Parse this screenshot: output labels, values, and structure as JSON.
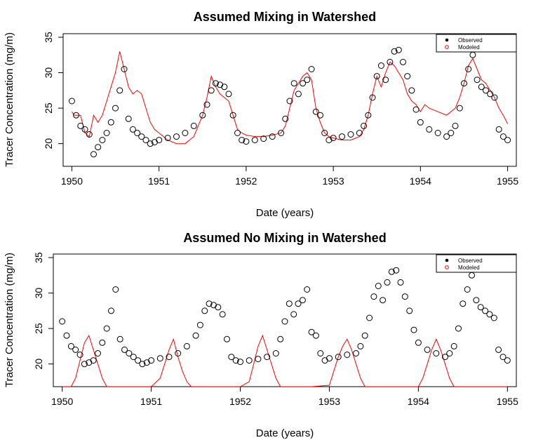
{
  "colors": {
    "observed": "#000000",
    "modeled": "#ff0000",
    "background": "#ffffff"
  },
  "chart_data": [
    {
      "type": "line",
      "title": "Assumed Mixing in Watershed",
      "xlabel": "Date (years)",
      "ylabel": "Tracer Concentration (mg/m)",
      "xlim": [
        1949.9,
        1955.1
      ],
      "ylim": [
        16.8,
        35.5
      ],
      "x_ticks": [
        1950,
        1951,
        1952,
        1953,
        1954,
        1955
      ],
      "x_tick_labels": [
        "1950",
        "1951",
        "1952",
        "1953",
        "1954",
        "1955"
      ],
      "y_ticks": [
        20,
        25,
        30,
        35
      ],
      "y_tick_labels": [
        "20",
        "25",
        "30",
        "35"
      ],
      "grid": false,
      "legend": {
        "position": "top-right",
        "entries": [
          "Observed",
          "Modeled"
        ]
      },
      "series": [
        {
          "name": "Observed",
          "style": "open-circles",
          "x": [
            1950.0,
            1950.05,
            1950.1,
            1950.15,
            1950.2,
            1950.25,
            1950.3,
            1950.35,
            1950.4,
            1950.45,
            1950.5,
            1950.55,
            1950.6,
            1950.65,
            1950.7,
            1950.75,
            1950.8,
            1950.85,
            1950.9,
            1950.95,
            1951.0,
            1951.1,
            1951.2,
            1951.3,
            1951.4,
            1951.5,
            1951.55,
            1951.6,
            1951.65,
            1951.7,
            1951.75,
            1951.8,
            1951.85,
            1951.9,
            1951.95,
            1952.0,
            1952.1,
            1952.2,
            1952.3,
            1952.4,
            1952.45,
            1952.5,
            1952.55,
            1952.6,
            1952.65,
            1952.7,
            1952.75,
            1952.8,
            1952.85,
            1952.9,
            1952.95,
            1953.0,
            1953.1,
            1953.2,
            1953.3,
            1953.35,
            1953.4,
            1953.45,
            1953.5,
            1953.55,
            1953.6,
            1953.65,
            1953.7,
            1953.75,
            1953.8,
            1953.85,
            1953.9,
            1953.95,
            1954.0,
            1954.1,
            1954.2,
            1954.3,
            1954.35,
            1954.4,
            1954.45,
            1954.5,
            1954.55,
            1954.6,
            1954.65,
            1954.7,
            1954.75,
            1954.8,
            1954.85,
            1954.9,
            1954.95,
            1955.0
          ],
          "y": [
            26.0,
            24.0,
            22.5,
            22.0,
            21.3,
            18.5,
            19.5,
            20.5,
            21.5,
            23.0,
            25.0,
            27.5,
            30.5,
            23.5,
            22.0,
            21.5,
            21.0,
            20.5,
            20.0,
            20.2,
            20.5,
            20.8,
            21.0,
            21.5,
            22.5,
            24.0,
            25.5,
            27.5,
            28.5,
            28.3,
            28.0,
            27.0,
            24.0,
            21.5,
            20.5,
            20.3,
            20.5,
            20.7,
            21.0,
            21.5,
            23.5,
            26.0,
            28.5,
            27.0,
            28.5,
            29.0,
            30.5,
            24.5,
            24.0,
            21.5,
            20.5,
            20.8,
            21.0,
            21.3,
            21.5,
            22.5,
            24.0,
            26.5,
            29.5,
            31.0,
            29.0,
            31.5,
            33.0,
            33.2,
            31.5,
            29.5,
            27.5,
            24.8,
            23.0,
            22.0,
            21.5,
            21.0,
            21.5,
            22.5,
            25.0,
            28.5,
            30.5,
            32.5,
            29.0,
            28.0,
            27.5,
            27.0,
            26.5,
            22.0,
            21.0,
            20.5
          ]
        },
        {
          "name": "Modeled",
          "style": "line",
          "x": [
            1950.0,
            1950.03,
            1950.1,
            1950.15,
            1950.2,
            1950.25,
            1950.3,
            1950.35,
            1950.4,
            1950.45,
            1950.5,
            1950.55,
            1950.6,
            1950.65,
            1950.7,
            1950.75,
            1950.8,
            1950.85,
            1950.9,
            1950.95,
            1951.0,
            1951.1,
            1951.2,
            1951.3,
            1951.4,
            1951.5,
            1951.55,
            1951.6,
            1951.65,
            1951.7,
            1951.75,
            1951.8,
            1951.85,
            1951.9,
            1951.95,
            1952.0,
            1952.1,
            1952.2,
            1952.3,
            1952.4,
            1952.45,
            1952.5,
            1952.55,
            1952.6,
            1952.65,
            1952.7,
            1952.75,
            1952.8,
            1952.85,
            1952.9,
            1952.95,
            1953.0,
            1953.1,
            1953.2,
            1953.3,
            1953.35,
            1953.4,
            1953.45,
            1953.5,
            1953.55,
            1953.6,
            1953.65,
            1953.7,
            1953.75,
            1953.8,
            1953.85,
            1953.9,
            1953.95,
            1954.0,
            1954.05,
            1954.1,
            1954.2,
            1954.3,
            1954.35,
            1954.4,
            1954.45,
            1954.5,
            1954.55,
            1954.6,
            1954.65,
            1954.7,
            1954.75,
            1954.8,
            1954.85,
            1954.9,
            1954.95,
            1955.0
          ],
          "y": [
            24.5,
            24.0,
            24.0,
            21.5,
            21.0,
            24.0,
            23.0,
            24.0,
            26.0,
            28.0,
            30.0,
            33.0,
            30.5,
            28.0,
            27.0,
            27.5,
            27.0,
            25.0,
            23.0,
            22.0,
            21.5,
            20.5,
            20.0,
            20.0,
            21.0,
            24.0,
            26.5,
            29.5,
            28.0,
            27.0,
            26.5,
            26.0,
            24.0,
            22.0,
            21.5,
            21.2,
            21.0,
            21.0,
            21.2,
            21.5,
            22.5,
            25.0,
            27.5,
            28.5,
            29.5,
            30.0,
            29.0,
            25.0,
            23.0,
            21.5,
            21.0,
            20.8,
            20.5,
            20.5,
            21.0,
            22.0,
            24.0,
            27.0,
            29.5,
            28.0,
            30.0,
            31.5,
            31.0,
            30.0,
            29.0,
            27.0,
            26.0,
            25.5,
            24.5,
            25.5,
            25.0,
            24.5,
            24.0,
            24.5,
            25.0,
            26.5,
            28.5,
            31.0,
            32.0,
            30.5,
            29.0,
            28.5,
            27.5,
            26.5,
            25.0,
            24.0,
            22.8
          ]
        }
      ]
    },
    {
      "type": "line",
      "title": "Assumed No Mixing in Watershed",
      "xlabel": "Date (years)",
      "ylabel": "Tracer Concentration (mg/m)",
      "xlim": [
        1949.9,
        1955.1
      ],
      "ylim": [
        16.8,
        35.5
      ],
      "x_ticks": [
        1950,
        1951,
        1952,
        1953,
        1954,
        1955
      ],
      "x_tick_labels": [
        "1950",
        "1951",
        "1952",
        "1953",
        "1954",
        "1955"
      ],
      "y_ticks": [
        20,
        25,
        30,
        35
      ],
      "y_tick_labels": [
        "20",
        "25",
        "30",
        "35"
      ],
      "grid": false,
      "legend": {
        "position": "top-right",
        "entries": [
          "Observed",
          "Modeled"
        ]
      },
      "series": [
        {
          "name": "Observed",
          "style": "open-circles",
          "x": [
            1950.0,
            1950.05,
            1950.1,
            1950.15,
            1950.2,
            1950.25,
            1950.3,
            1950.35,
            1950.4,
            1950.45,
            1950.5,
            1950.55,
            1950.6,
            1950.65,
            1950.7,
            1950.75,
            1950.8,
            1950.85,
            1950.9,
            1950.95,
            1951.0,
            1951.1,
            1951.2,
            1951.3,
            1951.4,
            1951.5,
            1951.55,
            1951.6,
            1951.65,
            1951.7,
            1951.75,
            1951.8,
            1951.85,
            1951.9,
            1951.95,
            1952.0,
            1952.1,
            1952.2,
            1952.3,
            1952.4,
            1952.45,
            1952.5,
            1952.55,
            1952.6,
            1952.65,
            1952.7,
            1952.75,
            1952.8,
            1952.85,
            1952.9,
            1952.95,
            1953.0,
            1953.1,
            1953.2,
            1953.3,
            1953.35,
            1953.4,
            1953.45,
            1953.5,
            1953.55,
            1953.6,
            1953.65,
            1953.7,
            1953.75,
            1953.8,
            1953.85,
            1953.9,
            1953.95,
            1954.0,
            1954.1,
            1954.2,
            1954.3,
            1954.35,
            1954.4,
            1954.45,
            1954.5,
            1954.55,
            1954.6,
            1954.65,
            1954.7,
            1954.75,
            1954.8,
            1954.85,
            1954.9,
            1954.95,
            1955.0
          ],
          "y": [
            26.0,
            24.0,
            22.5,
            22.0,
            21.3,
            20.0,
            20.2,
            20.5,
            21.5,
            23.0,
            25.0,
            27.5,
            30.5,
            23.5,
            22.0,
            21.5,
            21.0,
            20.5,
            20.0,
            20.2,
            20.5,
            20.8,
            21.0,
            21.5,
            22.5,
            24.0,
            25.5,
            27.5,
            28.5,
            28.3,
            28.0,
            27.0,
            23.5,
            21.0,
            20.5,
            20.3,
            20.5,
            20.7,
            21.0,
            21.5,
            23.5,
            26.0,
            28.5,
            27.0,
            28.5,
            29.0,
            30.5,
            24.5,
            24.0,
            21.5,
            20.5,
            20.8,
            21.0,
            21.3,
            21.5,
            22.5,
            24.0,
            26.5,
            29.5,
            31.0,
            29.0,
            31.5,
            33.0,
            33.2,
            31.5,
            29.5,
            27.5,
            24.8,
            23.0,
            22.0,
            21.5,
            21.0,
            21.5,
            22.5,
            25.0,
            28.5,
            30.5,
            32.5,
            29.0,
            28.0,
            27.5,
            27.0,
            26.5,
            22.0,
            21.0,
            20.5
          ]
        },
        {
          "name": "Modeled",
          "style": "line",
          "x": [
            1950.0,
            1950.1,
            1950.15,
            1950.2,
            1950.25,
            1950.3,
            1950.35,
            1950.4,
            1950.45,
            1950.5,
            1950.6,
            1950.8,
            1951.0,
            1951.1,
            1951.15,
            1951.2,
            1951.25,
            1951.3,
            1951.35,
            1951.4,
            1951.45,
            1951.5,
            1951.6,
            1951.8,
            1952.0,
            1952.1,
            1952.15,
            1952.2,
            1952.25,
            1952.3,
            1952.35,
            1952.4,
            1952.45,
            1952.5,
            1952.6,
            1952.8,
            1953.0,
            1953.05,
            1953.1,
            1953.15,
            1953.2,
            1953.25,
            1953.3,
            1953.35,
            1953.4,
            1953.45,
            1953.5,
            1953.6,
            1953.8,
            1954.0,
            1954.05,
            1954.1,
            1954.15,
            1954.2,
            1954.25,
            1954.3,
            1954.35,
            1954.4,
            1954.45,
            1954.5,
            1954.6,
            1954.8,
            1955.0
          ],
          "y": [
            16.8,
            16.8,
            18.0,
            20.5,
            23.0,
            24.0,
            22.0,
            20.0,
            18.0,
            16.8,
            16.8,
            16.8,
            16.8,
            18.0,
            20.0,
            22.0,
            23.5,
            21.0,
            19.0,
            17.5,
            16.8,
            16.8,
            16.8,
            16.8,
            16.8,
            17.5,
            20.0,
            22.5,
            24.0,
            22.0,
            20.0,
            18.0,
            16.8,
            16.8,
            16.8,
            16.8,
            17.0,
            19.0,
            21.0,
            22.5,
            23.5,
            22.0,
            20.0,
            18.0,
            16.8,
            16.8,
            16.8,
            16.8,
            16.8,
            16.8,
            18.0,
            20.0,
            22.0,
            23.5,
            22.0,
            20.0,
            18.0,
            16.8,
            16.8,
            16.8,
            16.8,
            16.8,
            16.8
          ]
        }
      ]
    }
  ]
}
